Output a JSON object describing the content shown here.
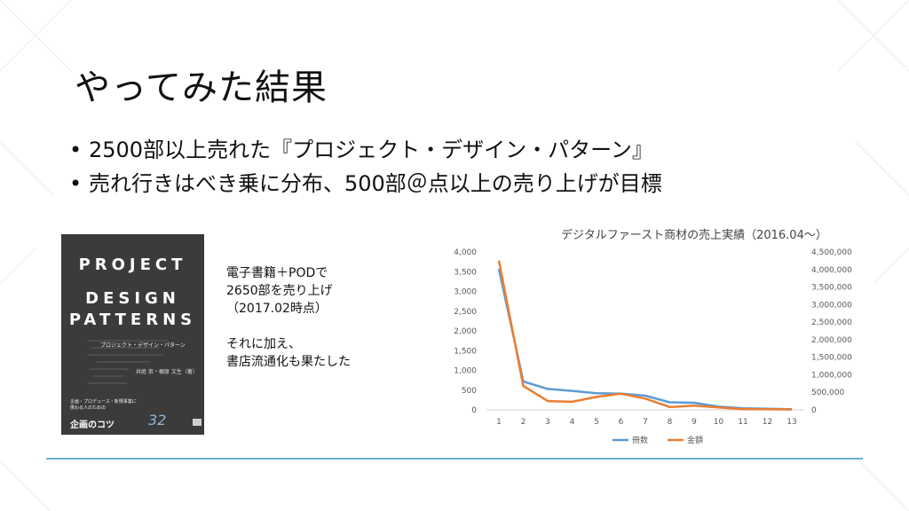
{
  "slide": {
    "title": "やってみた結果",
    "bullets": [
      "2500部以上売れた『プロジェクト・デザイン・パターン』",
      "売れ行きはべき乗に分布、500部＠点以上の売り上げが目標"
    ],
    "note_lines": [
      "電子書籍＋PODで",
      "2650部を売り上げ",
      "（2017.02時点）",
      "",
      "それに加え、",
      "書店流通化も果たした"
    ]
  },
  "book_cover": {
    "title_line1": "PROJECT",
    "title_line2": "DESIGN",
    "title_line3": "PATTERNS",
    "subtitle": "プロジェクト・デザイン・パターン",
    "authors": "井庭 崇・梶原 文生（著）",
    "tagline": "企画・プロデュース・新規事業に\n携わる人のための",
    "catch": "企画のコツ",
    "number": "32"
  },
  "chart_data": {
    "type": "line",
    "title": "デジタルファースト商材の売上実績（2016.04〜）",
    "x": [
      1,
      2,
      3,
      4,
      5,
      6,
      7,
      8,
      9,
      10,
      11,
      12,
      13
    ],
    "series": [
      {
        "name": "冊数",
        "axis": "left",
        "color": "#5b9bd5",
        "values": [
          3570,
          720,
          530,
          480,
          420,
          410,
          360,
          190,
          180,
          80,
          40,
          30,
          15
        ]
      },
      {
        "name": "金額",
        "axis": "right",
        "color": "#ed7d31",
        "values": [
          4250000,
          680000,
          250000,
          230000,
          370000,
          460000,
          320000,
          80000,
          120000,
          70000,
          20000,
          20000,
          10000
        ]
      }
    ],
    "y_left": {
      "min": 0,
      "max": 4000,
      "ticks": [
        "0",
        "500",
        "1,000",
        "1,500",
        "2,000",
        "2,500",
        "3,000",
        "3,500",
        "4,000"
      ]
    },
    "y_right": {
      "min": 0,
      "max": 4500000,
      "ticks": [
        "0",
        "500,000",
        "1,000,000",
        "1,500,000",
        "2,000,000",
        "2,500,000",
        "3,000,000",
        "3,500,000",
        "4,000,000",
        "4,500,000"
      ]
    },
    "x_ticks": [
      "1",
      "2",
      "3",
      "4",
      "5",
      "6",
      "7",
      "8",
      "9",
      "10",
      "11",
      "12",
      "13"
    ],
    "legend_position": "bottom",
    "grid": false
  }
}
